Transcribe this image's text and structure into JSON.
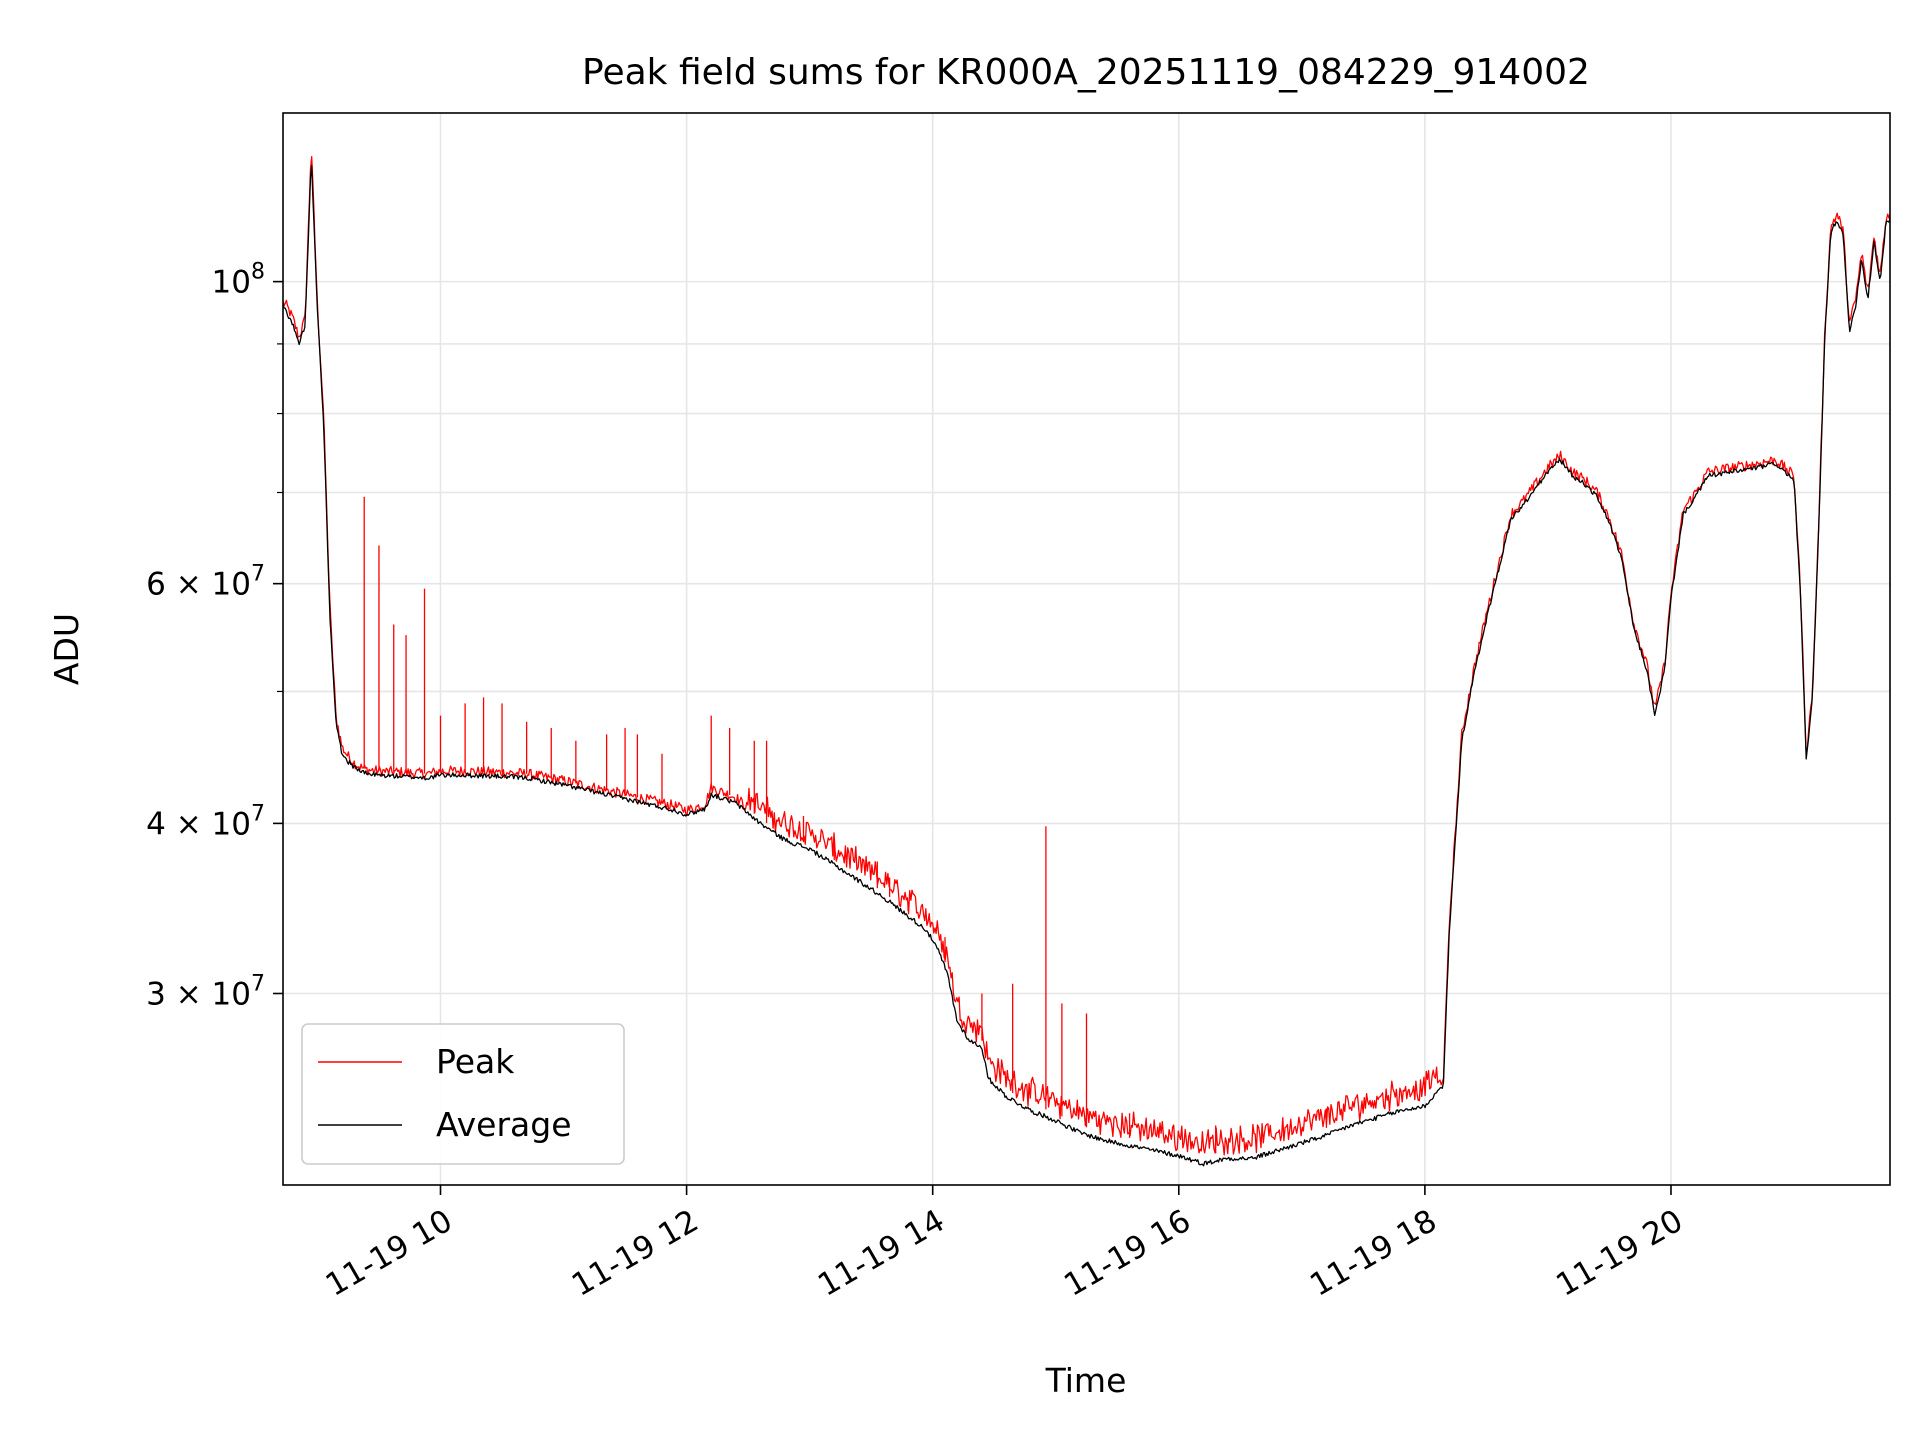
{
  "chart_data": {
    "type": "line",
    "title": "Peak field sums for KR000A_20251119_084229_914002",
    "xlabel": "Time",
    "ylabel": "ADU",
    "yscale": "log",
    "xlim": [
      8.72,
      21.78
    ],
    "ylim": [
      21700000,
      133000000
    ],
    "grid": true,
    "legend_position": "lower-left",
    "x_ticks": [
      {
        "value": 10,
        "label": "11-19 10"
      },
      {
        "value": 12,
        "label": "11-19 12"
      },
      {
        "value": 14,
        "label": "11-19 14"
      },
      {
        "value": 16,
        "label": "11-19 16"
      },
      {
        "value": 18,
        "label": "11-19 18"
      },
      {
        "value": 20,
        "label": "11-19 20"
      }
    ],
    "y_ticks": [
      {
        "value": 30000000,
        "mant": "3",
        "exp": "7"
      },
      {
        "value": 40000000,
        "mant": "4",
        "exp": "7"
      },
      {
        "value": 60000000,
        "mant": "6",
        "exp": "7"
      },
      {
        "value": 100000000,
        "mant": "",
        "exp": "8"
      }
    ],
    "y_minor_ticks": [
      50000000,
      70000000,
      80000000,
      90000000
    ],
    "series": [
      {
        "name": "Peak",
        "color": "#ff0000",
        "x": [
          8.72,
          8.75,
          8.8,
          8.85,
          8.9,
          8.95,
          9.0,
          9.05,
          9.1,
          9.15,
          9.2,
          9.25,
          9.3,
          9.35,
          9.4,
          9.5,
          9.7,
          9.9,
          10.0,
          10.2,
          10.5,
          10.7,
          11.0,
          11.3,
          11.6,
          11.9,
          12.0,
          12.15,
          12.2,
          12.4,
          12.6,
          12.8,
          13.0,
          13.2,
          13.4,
          13.6,
          13.8,
          13.95,
          14.05,
          14.12,
          14.2,
          14.3,
          14.4,
          14.45,
          14.6,
          14.8,
          15.0,
          15.2,
          15.4,
          15.6,
          15.8,
          16.0,
          16.2,
          16.4,
          16.6,
          16.8,
          17.0,
          17.2,
          17.4,
          17.6,
          17.8,
          18.0,
          18.15,
          18.2,
          18.3,
          18.4,
          18.5,
          18.6,
          18.7,
          18.8,
          18.9,
          19.0,
          19.1,
          19.2,
          19.3,
          19.4,
          19.5,
          19.6,
          19.7,
          19.8,
          19.87,
          19.95,
          20.0,
          20.1,
          20.2,
          20.3,
          20.5,
          20.7,
          20.85,
          21.0,
          21.05,
          21.1,
          21.15,
          21.2,
          21.25,
          21.3,
          21.35,
          21.4,
          21.45,
          21.5,
          21.55,
          21.6,
          21.65,
          21.7,
          21.75,
          21.78
        ],
        "y": [
          96500000,
          96000000,
          94000000,
          91000000,
          94000000,
          126000000,
          96000000,
          80000000,
          58000000,
          48000000,
          45500000,
          44800000,
          44300000,
          44000000,
          43800000,
          43700000,
          43600000,
          43500000,
          43700000,
          43700000,
          43600000,
          43500000,
          43000000,
          42400000,
          41800000,
          41200000,
          40900000,
          41300000,
          42500000,
          41800000,
          40300000,
          39200000,
          38600000,
          37600000,
          36600000,
          35600000,
          34500000,
          33700000,
          32500000,
          31300000,
          28800000,
          28000000,
          27700000,
          26300000,
          25500000,
          24900000,
          24500000,
          24000000,
          23700000,
          23500000,
          23300000,
          23100000,
          22800000,
          23000000,
          23000000,
          23300000,
          23600000,
          23900000,
          24300000,
          24600000,
          24900000,
          25100000,
          26000000,
          34000000,
          46500000,
          52000000,
          57000000,
          62000000,
          67500000,
          69000000,
          71000000,
          73000000,
          74500000,
          72500000,
          71500000,
          70000000,
          67000000,
          63000000,
          56000000,
          52500000,
          48500000,
          52500000,
          59000000,
          68000000,
          70000000,
          72500000,
          73000000,
          73500000,
          74000000,
          72000000,
          60000000,
          45000000,
          50000000,
          66000000,
          92000000,
          110000000,
          112000000,
          109000000,
          93000000,
          97000000,
          105000000,
          98000000,
          108000000,
          101000000,
          112000000,
          112000000
        ]
      },
      {
        "name": "Average",
        "color": "#000000",
        "x": [
          8.72,
          8.75,
          8.8,
          8.85,
          8.9,
          8.95,
          9.0,
          9.05,
          9.1,
          9.15,
          9.2,
          9.25,
          9.3,
          9.35,
          9.4,
          9.5,
          9.7,
          9.9,
          10.0,
          10.2,
          10.5,
          10.7,
          11.0,
          11.3,
          11.6,
          11.9,
          12.0,
          12.15,
          12.2,
          12.4,
          12.6,
          12.8,
          13.0,
          13.2,
          13.4,
          13.6,
          13.8,
          13.95,
          14.05,
          14.12,
          14.2,
          14.3,
          14.4,
          14.45,
          14.6,
          14.8,
          15.0,
          15.2,
          15.4,
          15.6,
          15.8,
          16.0,
          16.2,
          16.4,
          16.6,
          16.8,
          17.0,
          17.2,
          17.4,
          17.6,
          17.8,
          18.0,
          18.15,
          18.2,
          18.3,
          18.4,
          18.5,
          18.6,
          18.7,
          18.8,
          18.9,
          19.0,
          19.1,
          19.2,
          19.3,
          19.4,
          19.5,
          19.6,
          19.7,
          19.8,
          19.87,
          19.95,
          20.0,
          20.1,
          20.2,
          20.3,
          20.5,
          20.7,
          20.85,
          21.0,
          21.05,
          21.1,
          21.15,
          21.2,
          21.25,
          21.3,
          21.35,
          21.4,
          21.45,
          21.5,
          21.55,
          21.6,
          21.65,
          21.7,
          21.75,
          21.78
        ],
        "y": [
          96000000,
          95000000,
          93000000,
          90000000,
          93000000,
          124000000,
          95000000,
          79000000,
          57000000,
          47500000,
          45000000,
          44400000,
          44000000,
          43700000,
          43500000,
          43400000,
          43300000,
          43200000,
          43400000,
          43400000,
          43300000,
          43200000,
          42700000,
          42100000,
          41500000,
          40900000,
          40600000,
          41000000,
          42000000,
          41400000,
          40000000,
          38900000,
          38300000,
          37300000,
          36300000,
          35300000,
          34200000,
          33400000,
          32200000,
          31000000,
          28600000,
          27700000,
          27400000,
          26000000,
          25200000,
          24600000,
          24200000,
          23700000,
          23400000,
          23200000,
          23000000,
          22800000,
          22500000,
          22700000,
          22700000,
          23000000,
          23300000,
          23600000,
          24000000,
          24300000,
          24600000,
          24800000,
          25700000,
          33500000,
          46000000,
          51500000,
          56500000,
          61500000,
          67000000,
          68500000,
          70500000,
          72500000,
          74000000,
          72000000,
          71000000,
          69500000,
          66500000,
          62500000,
          55500000,
          52000000,
          48000000,
          52000000,
          58500000,
          67500000,
          69500000,
          72000000,
          72500000,
          73000000,
          73500000,
          71500000,
          59500000,
          44500000,
          49500000,
          65500000,
          91000000,
          109000000,
          111000000,
          108000000,
          92000000,
          96000000,
          104000000,
          97000000,
          107000000,
          100000000,
          111000000,
          111000000
        ]
      }
    ],
    "spikes": {
      "series": "Peak",
      "x": [
        9.38,
        9.5,
        9.62,
        9.72,
        9.87,
        10.0,
        10.2,
        10.35,
        10.5,
        10.7,
        10.9,
        11.1,
        11.35,
        11.5,
        11.6,
        11.8,
        12.2,
        12.35,
        12.55,
        12.65,
        12.95,
        13.2,
        13.55,
        13.65,
        13.8,
        14.1,
        14.4,
        14.65,
        14.92,
        15.05,
        15.25,
        15.6,
        16.3,
        17.2
      ],
      "y": [
        69500000,
        64000000,
        56000000,
        55000000,
        59500000,
        48000000,
        49000000,
        49500000,
        49000000,
        47500000,
        47000000,
        46000000,
        46500000,
        47000000,
        46500000,
        45000000,
        48000000,
        47000000,
        46000000,
        46000000,
        40500000,
        39000000,
        37500000,
        36500000,
        35000000,
        33000000,
        30000000,
        30500000,
        39800000,
        29500000,
        29000000,
        24500000,
        24000000,
        24700000
      ]
    }
  }
}
